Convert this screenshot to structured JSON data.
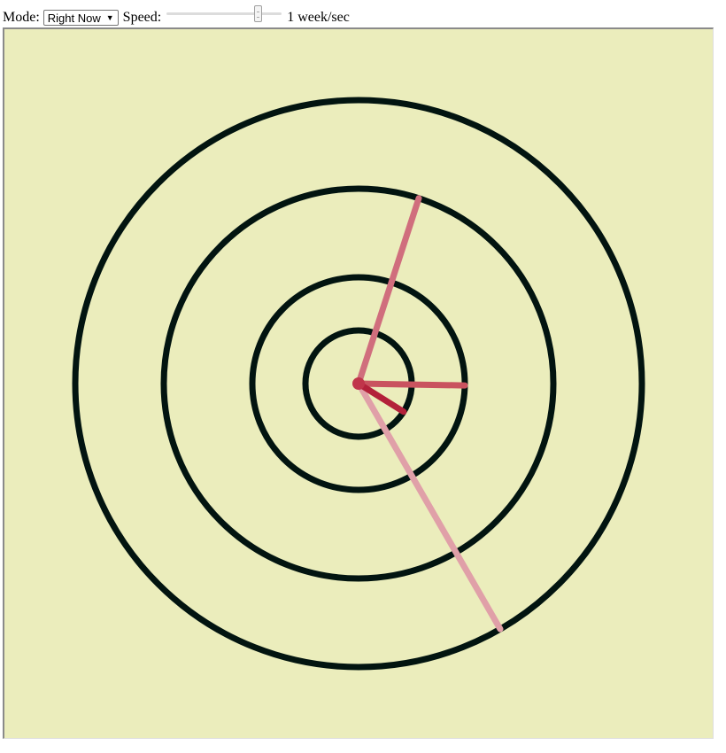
{
  "controls": {
    "mode_label": "Mode:",
    "mode_value": "Right Now",
    "speed_label": "Speed:",
    "speed_fraction": 0.82,
    "speed_value": "1 week/sec"
  },
  "clock": {
    "background": "#ebedbc",
    "ring_color": "#021410",
    "hands": [
      {
        "name": "hand-outer",
        "color": "#e0a0a8",
        "angle_deg": 150,
        "ring": 4
      },
      {
        "name": "hand-third",
        "color": "#d06e7d",
        "angle_deg": 18,
        "ring": 3
      },
      {
        "name": "hand-second",
        "color": "#c9535f",
        "angle_deg": 91,
        "ring": 2
      },
      {
        "name": "hand-inner",
        "color": "#b3213a",
        "angle_deg": 122,
        "ring": 1
      }
    ],
    "hub_color": "#c0354a"
  }
}
